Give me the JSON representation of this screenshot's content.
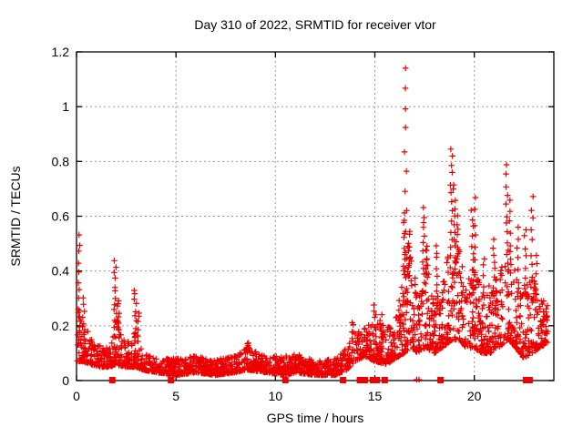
{
  "window": {
    "title": "Day 310 of 2022, SRMTID for receiver vtor"
  },
  "chart_data": {
    "type": "scatter",
    "title": "Day 310 of 2022, SRMTID for receiver vtor",
    "xlabel": "GPS time / hours",
    "ylabel": "SRMTID / TECUs",
    "xlim": [
      0,
      24
    ],
    "ylim": [
      0,
      1.2
    ],
    "xticks": [
      0,
      5,
      10,
      15,
      20
    ],
    "xtick_labels": [
      "0",
      "5",
      "10",
      "15",
      "20"
    ],
    "yticks": [
      0,
      0.2,
      0.4,
      0.6,
      0.8,
      1,
      1.2
    ],
    "ytick_labels": [
      "0",
      "0.2",
      "0.4",
      "0.6",
      "0.8",
      "1",
      "1.2"
    ],
    "grid": true,
    "grid_color": "#999999",
    "legend": "none",
    "marker": "plus",
    "marker_color": "#ee0000",
    "marker_size": 7,
    "axis_color": "#000000",
    "background": "#ffffff",
    "seed": 310,
    "n_base_points": 2400,
    "x_data_max": 23.7,
    "baseline_envelope": [
      [
        0.0,
        0.07,
        0.3
      ],
      [
        0.3,
        0.07,
        0.22
      ],
      [
        0.7,
        0.06,
        0.16
      ],
      [
        1.2,
        0.05,
        0.13
      ],
      [
        1.7,
        0.05,
        0.12
      ],
      [
        2.0,
        0.06,
        0.26
      ],
      [
        2.3,
        0.05,
        0.15
      ],
      [
        2.7,
        0.05,
        0.14
      ],
      [
        3.0,
        0.05,
        0.2
      ],
      [
        3.3,
        0.04,
        0.1
      ],
      [
        4.0,
        0.03,
        0.08
      ],
      [
        5.0,
        0.02,
        0.08
      ],
      [
        6.0,
        0.03,
        0.09
      ],
      [
        7.0,
        0.02,
        0.08
      ],
      [
        8.0,
        0.03,
        0.09
      ],
      [
        8.6,
        0.04,
        0.12
      ],
      [
        9.5,
        0.03,
        0.09
      ],
      [
        10.5,
        0.02,
        0.09
      ],
      [
        11.0,
        0.03,
        0.1
      ],
      [
        12.0,
        0.02,
        0.07
      ],
      [
        13.0,
        0.02,
        0.08
      ],
      [
        13.6,
        0.04,
        0.12
      ],
      [
        14.0,
        0.07,
        0.17
      ],
      [
        14.5,
        0.09,
        0.2
      ],
      [
        15.0,
        0.07,
        0.22
      ],
      [
        15.6,
        0.06,
        0.2
      ],
      [
        16.0,
        0.08,
        0.22
      ],
      [
        16.5,
        0.1,
        0.45
      ],
      [
        16.8,
        0.12,
        0.5
      ],
      [
        17.2,
        0.1,
        0.3
      ],
      [
        17.6,
        0.12,
        0.45
      ],
      [
        18.0,
        0.1,
        0.3
      ],
      [
        18.4,
        0.12,
        0.35
      ],
      [
        18.9,
        0.15,
        0.55
      ],
      [
        19.2,
        0.15,
        0.5
      ],
      [
        19.6,
        0.12,
        0.35
      ],
      [
        20.0,
        0.12,
        0.42
      ],
      [
        20.4,
        0.1,
        0.32
      ],
      [
        20.8,
        0.1,
        0.35
      ],
      [
        21.2,
        0.12,
        0.38
      ],
      [
        21.7,
        0.15,
        0.48
      ],
      [
        22.1,
        0.12,
        0.4
      ],
      [
        22.5,
        0.08,
        0.35
      ],
      [
        22.9,
        0.1,
        0.4
      ],
      [
        23.3,
        0.12,
        0.3
      ],
      [
        23.7,
        0.14,
        0.28
      ]
    ],
    "spikes": [
      {
        "x": 0.12,
        "top": 0.53,
        "n": 10
      },
      {
        "x": 0.35,
        "top": 0.3,
        "n": 6
      },
      {
        "x": 1.95,
        "top": 0.43,
        "n": 12
      },
      {
        "x": 2.1,
        "top": 0.3,
        "n": 8
      },
      {
        "x": 2.95,
        "top": 0.33,
        "n": 10
      },
      {
        "x": 3.1,
        "top": 0.25,
        "n": 6
      },
      {
        "x": 8.6,
        "top": 0.14,
        "n": 5
      },
      {
        "x": 13.9,
        "top": 0.22,
        "n": 6
      },
      {
        "x": 15.0,
        "top": 0.28,
        "n": 6
      },
      {
        "x": 15.3,
        "top": 0.24,
        "n": 5
      },
      {
        "x": 16.5,
        "top": 0.62,
        "n": 10
      },
      {
        "x": 16.55,
        "top": 1.14,
        "n": 11
      },
      {
        "x": 16.7,
        "top": 0.55,
        "n": 8
      },
      {
        "x": 17.45,
        "top": 0.63,
        "n": 12
      },
      {
        "x": 17.6,
        "top": 0.5,
        "n": 8
      },
      {
        "x": 18.1,
        "top": 0.5,
        "n": 9
      },
      {
        "x": 18.85,
        "top": 0.85,
        "n": 13
      },
      {
        "x": 19.0,
        "top": 0.72,
        "n": 10
      },
      {
        "x": 19.15,
        "top": 0.6,
        "n": 8
      },
      {
        "x": 19.9,
        "top": 0.62,
        "n": 10
      },
      {
        "x": 20.05,
        "top": 0.66,
        "n": 8
      },
      {
        "x": 20.5,
        "top": 0.45,
        "n": 6
      },
      {
        "x": 21.0,
        "top": 0.52,
        "n": 8
      },
      {
        "x": 21.65,
        "top": 0.78,
        "n": 12
      },
      {
        "x": 21.8,
        "top": 0.65,
        "n": 8
      },
      {
        "x": 22.2,
        "top": 0.55,
        "n": 7
      },
      {
        "x": 22.55,
        "top": 0.56,
        "n": 8
      },
      {
        "x": 22.9,
        "top": 0.67,
        "n": 9
      },
      {
        "x": 23.1,
        "top": 0.45,
        "n": 6
      }
    ],
    "zero_square_markers": [
      1.8,
      4.75,
      10.5,
      13.4,
      14.25,
      14.5,
      14.9,
      15.1,
      15.5,
      18.3,
      22.6,
      22.78
    ],
    "zero_plus_markers": [
      17.1,
      17.22
    ]
  }
}
